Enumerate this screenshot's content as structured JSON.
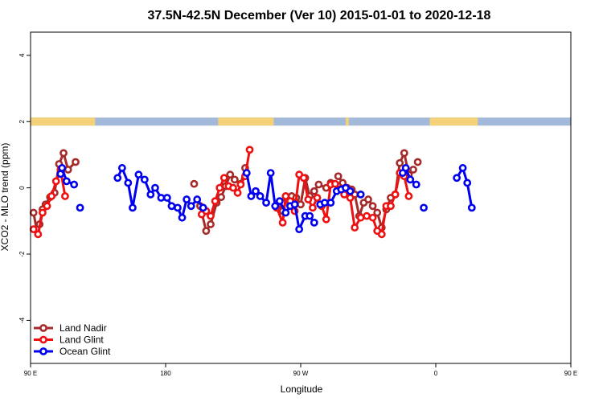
{
  "chart_data": {
    "type": "line",
    "title": "37.5N-42.5N December (Ver 10)   2015-01-01 to 2020-12-18",
    "xlabel": "Longitude",
    "ylabel": "XCO2 - MLO trend (ppm)",
    "xlim": [
      90,
      450
    ],
    "ylim": [
      -5.3,
      4.7
    ],
    "x_ticks": [
      {
        "value": 90,
        "label": "90 E"
      },
      {
        "value": 180,
        "label": "180"
      },
      {
        "value": 270,
        "label": "90 W"
      },
      {
        "value": 360,
        "label": "0"
      },
      {
        "value": 450,
        "label": "90 E"
      }
    ],
    "y_ticks": [
      {
        "value": -4,
        "label": "-4"
      },
      {
        "value": -2,
        "label": "-2"
      },
      {
        "value": 0,
        "label": "0"
      },
      {
        "value": 2,
        "label": "2"
      },
      {
        "value": 4,
        "label": "4"
      }
    ],
    "legend_position": "bottom-left",
    "land_band": {
      "y": 2,
      "land_color": "#f5d27a",
      "ocean_color": "#a3b9d9",
      "land_ranges": [
        [
          90,
          133
        ],
        [
          215,
          252
        ],
        [
          300,
          302
        ],
        [
          356,
          388
        ],
        [
          451,
          489
        ],
        [
          467,
          480
        ]
      ]
    },
    "series": [
      {
        "name": "Land Nadir",
        "color": "#a52a2a",
        "segments": [
          [
            [
              92,
              -0.75
            ],
            [
              94,
              -1.25
            ],
            [
              96,
              -1.1
            ],
            [
              98,
              -0.65
            ],
            [
              100,
              -0.5
            ],
            [
              103,
              -0.28
            ],
            [
              106,
              -0.15
            ],
            [
              109,
              0.72
            ],
            [
              112,
              1.05
            ],
            [
              115,
              0.55
            ],
            [
              120,
              0.78
            ]
          ],
          [
            [
              199,
              0.12
            ]
          ],
          [
            [
              203,
              -0.55
            ],
            [
              207,
              -1.3
            ],
            [
              210,
              -1.1
            ],
            [
              214,
              -0.45
            ],
            [
              217,
              -0.28
            ],
            [
              220,
              0.05
            ],
            [
              223,
              0.4
            ],
            [
              226,
              0.25
            ],
            [
              230,
              0.12
            ],
            [
              233,
              0.6
            ]
          ],
          [
            [
              255,
              -0.55
            ],
            [
              258,
              -0.7
            ],
            [
              261,
              -0.35
            ],
            [
              264,
              -0.25
            ],
            [
              267,
              -0.3
            ],
            [
              270,
              -0.5
            ],
            [
              273,
              0.3
            ],
            [
              276,
              -0.25
            ],
            [
              279,
              -0.1
            ],
            [
              282,
              0.1
            ],
            [
              287,
              0.0
            ],
            [
              290,
              0.15
            ]
          ],
          [
            [
              295,
              0.35
            ],
            [
              298,
              0.15
            ],
            [
              301,
              0.0
            ],
            [
              304,
              -0.05
            ],
            [
              306,
              -0.2
            ],
            [
              309,
              -0.85
            ],
            [
              312,
              -0.45
            ],
            [
              315,
              -0.35
            ],
            [
              318,
              -0.55
            ],
            [
              321,
              -0.75
            ],
            [
              324,
              -1.2
            ],
            [
              327,
              -0.65
            ],
            [
              330,
              -0.3
            ],
            [
              333,
              -0.2
            ],
            [
              336,
              0.75
            ],
            [
              339,
              1.05
            ],
            [
              342,
              0.4
            ],
            [
              345,
              0.55
            ]
          ],
          [
            [
              348,
              0.78
            ]
          ]
        ]
      },
      {
        "name": "Land Glint",
        "color": "#ee1111",
        "segments": [
          [
            [
              92,
              -1.25
            ],
            [
              95,
              -1.4
            ],
            [
              98,
              -0.75
            ],
            [
              101,
              -0.55
            ],
            [
              104,
              -0.25
            ],
            [
              107,
              0.2
            ],
            [
              110,
              0.55
            ],
            [
              113,
              -0.25
            ]
          ],
          [
            [
              204,
              -0.8
            ],
            [
              207,
              -0.7
            ],
            [
              210,
              -0.85
            ],
            [
              213,
              -0.4
            ],
            [
              216,
              0.0
            ],
            [
              219,
              0.3
            ],
            [
              222,
              0.05
            ],
            [
              225,
              0.0
            ],
            [
              228,
              -0.15
            ],
            [
              230,
              0.1
            ],
            [
              233,
              0.35
            ],
            [
              236,
              1.15
            ]
          ],
          [
            [
              254,
              -0.6
            ],
            [
              258,
              -1.05
            ],
            [
              260,
              -0.25
            ],
            [
              263,
              -0.4
            ],
            [
              266,
              -0.7
            ],
            [
              269,
              0.4
            ],
            [
              272,
              0.3
            ],
            [
              275,
              -0.35
            ],
            [
              278,
              -0.6
            ],
            [
              281,
              -0.3
            ],
            [
              284,
              -0.55
            ],
            [
              287,
              -0.95
            ],
            [
              290,
              0.1
            ],
            [
              293,
              0.12
            ],
            [
              296,
              -0.05
            ],
            [
              299,
              -0.2
            ],
            [
              303,
              -0.3
            ],
            [
              306,
              -1.2
            ],
            [
              310,
              -0.9
            ],
            [
              314,
              -0.85
            ],
            [
              318,
              -0.9
            ],
            [
              321,
              -1.3
            ],
            [
              324,
              -1.4
            ],
            [
              327,
              -0.55
            ],
            [
              330,
              -0.55
            ],
            [
              333,
              -0.2
            ],
            [
              336,
              0.45
            ],
            [
              339,
              0.35
            ],
            [
              342,
              -0.25
            ]
          ]
        ]
      },
      {
        "name": "Ocean Glint",
        "color": "#0000ee",
        "segments": [
          [
            [
              111,
              0.6
            ],
            [
              114,
              0.2
            ],
            [
              119,
              0.1
            ]
          ],
          [
            [
              110,
              0.42
            ]
          ],
          [
            [
              123,
              -0.6
            ]
          ],
          [
            [
              148,
              0.3
            ],
            [
              151,
              0.6
            ],
            [
              155,
              0.15
            ],
            [
              158,
              -0.6
            ],
            [
              162,
              0.4
            ],
            [
              166,
              0.25
            ],
            [
              170,
              -0.2
            ],
            [
              173,
              0.0
            ],
            [
              177,
              -0.3
            ],
            [
              181,
              -0.3
            ],
            [
              184,
              -0.55
            ],
            [
              188,
              -0.6
            ],
            [
              191,
              -0.9
            ],
            [
              194,
              -0.35
            ],
            [
              197,
              -0.55
            ],
            [
              201,
              -0.35
            ],
            [
              205,
              -0.6
            ]
          ],
          [
            [
              234,
              0.45
            ],
            [
              237,
              -0.25
            ],
            [
              240,
              -0.1
            ],
            [
              243,
              -0.25
            ],
            [
              247,
              -0.45
            ],
            [
              250,
              0.45
            ],
            [
              253,
              -0.55
            ],
            [
              256,
              -0.4
            ],
            [
              260,
              -0.75
            ],
            [
              263,
              -0.55
            ],
            [
              266,
              -0.5
            ],
            [
              269,
              -1.25
            ],
            [
              273,
              -0.85
            ],
            [
              276,
              -0.85
            ],
            [
              279,
              -1.05
            ]
          ],
          [
            [
              283,
              -0.5
            ],
            [
              286,
              -0.45
            ],
            [
              290,
              -0.45
            ],
            [
              294,
              -0.1
            ],
            [
              297,
              -0.05
            ],
            [
              300,
              0.0
            ],
            [
              303,
              -0.1
            ]
          ],
          [
            [
              310,
              -0.2
            ]
          ],
          [
            [
              338,
              0.45
            ],
            [
              340,
              0.6
            ],
            [
              343,
              0.25
            ],
            [
              347,
              0.1
            ]
          ],
          [
            [
              352,
              -0.6
            ]
          ],
          [
            [
              374,
              0.3
            ],
            [
              378,
              0.6
            ],
            [
              381,
              0.15
            ],
            [
              384,
              -0.6
            ]
          ]
        ]
      }
    ]
  }
}
